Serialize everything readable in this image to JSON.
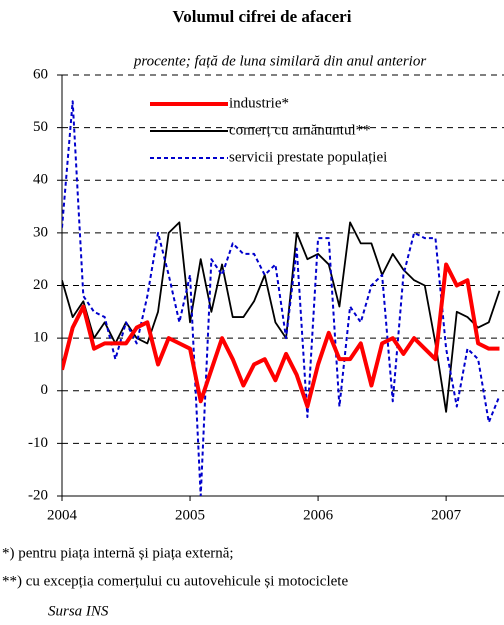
{
  "chart_data": {
    "type": "line",
    "title": "Volumul cifrei de afaceri",
    "subtitle": "procente; față de luna similară din anul anterior",
    "categories": [
      "2004",
      null,
      null,
      null,
      null,
      null,
      null,
      null,
      null,
      null,
      null,
      null,
      "2005",
      null,
      null,
      null,
      null,
      null,
      null,
      null,
      null,
      null,
      null,
      null,
      "2006",
      null,
      null,
      null,
      null,
      null,
      null,
      null,
      null,
      null,
      null,
      null,
      "2007",
      null,
      null,
      null,
      null,
      null
    ],
    "series": [
      {
        "name": "industrie*",
        "color": "#ff0000",
        "style": "solid",
        "values": [
          4,
          12,
          16,
          8,
          9,
          9,
          9,
          12,
          13,
          5,
          10,
          9,
          8,
          -2,
          4,
          10,
          6,
          1,
          5,
          6,
          2,
          7,
          3,
          -3,
          5,
          11,
          6,
          6,
          9,
          1,
          9,
          10,
          7,
          10,
          8,
          6,
          24,
          20,
          21,
          9,
          8,
          8
        ]
      },
      {
        "name": "comerț cu amănuntul**",
        "color": "#000000",
        "style": "solid",
        "values": [
          21,
          14,
          17,
          10,
          13,
          9,
          13,
          10,
          9,
          15,
          30,
          32,
          13,
          25,
          15,
          24,
          14,
          14,
          17,
          22,
          13,
          10,
          30,
          25,
          26,
          24,
          16,
          32,
          28,
          28,
          22,
          26,
          23,
          21,
          20,
          9,
          -4,
          15,
          14,
          12,
          13,
          19
        ]
      },
      {
        "name": "servicii prestate populației",
        "color": "#0000cc",
        "style": "dotted",
        "values": [
          31,
          55,
          18,
          15,
          14,
          6,
          13,
          9,
          18,
          30,
          22,
          13,
          22,
          -20,
          25,
          22,
          28,
          26,
          26,
          22,
          24,
          10,
          27,
          -5,
          29,
          29,
          -3,
          16,
          13,
          20,
          22,
          -2,
          22,
          30,
          29,
          29,
          8,
          -3,
          8,
          6,
          -6,
          -1
        ]
      }
    ],
    "ylim": [
      -20,
      60
    ],
    "yticks": [
      -20,
      -10,
      0,
      10,
      20,
      30,
      40,
      50,
      60
    ],
    "grid": true,
    "notes": [
      "*) pentru piața internă și piața externă;",
      "**) cu excepția comerțului cu autovehicule și motociclete"
    ],
    "source": "Sursa  INS"
  }
}
